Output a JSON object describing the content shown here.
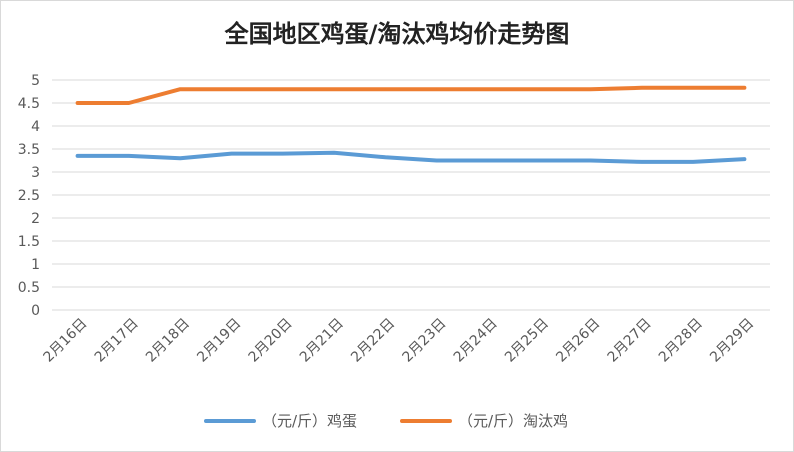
{
  "chart_data": {
    "type": "line",
    "title": "全国地区鸡蛋/淘汰鸡均价走势图",
    "categories": [
      "2月16日",
      "2月17日",
      "2月18日",
      "2月19日",
      "2月20日",
      "2月21日",
      "2月22日",
      "2月23日",
      "2月24日",
      "2月25日",
      "2月26日",
      "2月27日",
      "2月28日",
      "2月29日"
    ],
    "ylim": [
      0,
      5
    ],
    "yticks": [
      "0",
      "0.5",
      "1",
      "1.5",
      "2",
      "2.5",
      "3",
      "3.5",
      "4",
      "4.5",
      "5"
    ],
    "grid": true,
    "legend_position": "bottom",
    "series": [
      {
        "name": "（元/斤）鸡蛋",
        "color": "#5b9bd5",
        "values": [
          3.35,
          3.35,
          3.3,
          3.4,
          3.4,
          3.42,
          3.32,
          3.25,
          3.25,
          3.25,
          3.25,
          3.22,
          3.22,
          3.28
        ]
      },
      {
        "name": "（元/斤）淘汰鸡",
        "color": "#ed7d31",
        "values": [
          4.5,
          4.5,
          4.8,
          4.8,
          4.8,
          4.8,
          4.8,
          4.8,
          4.8,
          4.8,
          4.8,
          4.83,
          4.83,
          4.83
        ]
      }
    ]
  }
}
